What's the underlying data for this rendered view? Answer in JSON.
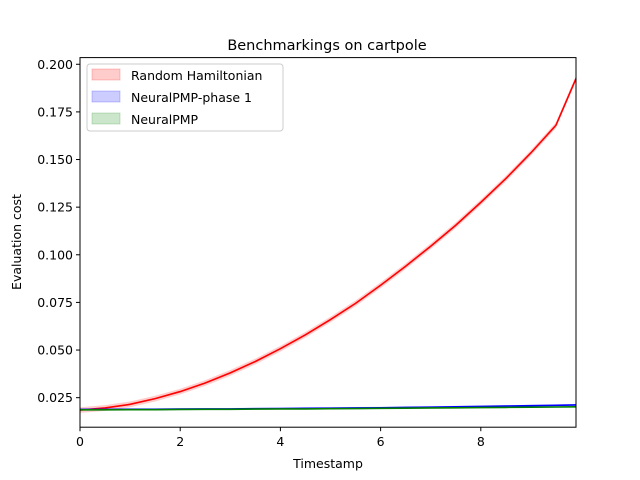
{
  "chart_data": {
    "type": "line",
    "title": "Benchmarkings on cartpole",
    "xlabel": "Timestamp",
    "ylabel": "Evaluation cost",
    "xlim": [
      0,
      9.9
    ],
    "ylim": [
      0.0095,
      0.2035
    ],
    "xticks": [
      0,
      2,
      4,
      6,
      8
    ],
    "xtick_labels": [
      "0",
      "2",
      "4",
      "6",
      "8"
    ],
    "yticks": [
      0.025,
      0.05,
      0.075,
      0.1,
      0.125,
      0.15,
      0.175,
      0.2
    ],
    "ytick_labels": [
      "0.025",
      "0.050",
      "0.075",
      "0.100",
      "0.125",
      "0.150",
      "0.175",
      "0.200"
    ],
    "grid": false,
    "legend_position": "top-left",
    "x": [
      0,
      0.5,
      1,
      1.5,
      2,
      2.5,
      3,
      3.5,
      4,
      4.5,
      5,
      5.5,
      6,
      6.5,
      7,
      7.5,
      8,
      8.5,
      9,
      9.5,
      9.9
    ],
    "series": [
      {
        "name": "Random Hamiltonian",
        "line_color": "#ff0000",
        "fill_color": "#ff0000",
        "values": [
          0.0185,
          0.0196,
          0.0215,
          0.0245,
          0.0282,
          0.0327,
          0.038,
          0.044,
          0.0507,
          0.058,
          0.066,
          0.0745,
          0.084,
          0.094,
          0.1045,
          0.1155,
          0.1275,
          0.14,
          0.1535,
          0.168,
          0.1925
        ],
        "band": 0.0015
      },
      {
        "name": "NeuralPMP-phase 1",
        "line_color": "#0000ff",
        "fill_color": "#0000ff",
        "values": [
          0.0188,
          0.0188,
          0.0189,
          0.0189,
          0.019,
          0.0191,
          0.0191,
          0.0192,
          0.0193,
          0.0194,
          0.0195,
          0.0196,
          0.0197,
          0.0199,
          0.02,
          0.0202,
          0.0204,
          0.0206,
          0.0208,
          0.021,
          0.0212
        ],
        "band": 0.0005
      },
      {
        "name": "NeuralPMP",
        "line_color": "#008000",
        "fill_color": "#008000",
        "values": [
          0.0186,
          0.0186,
          0.0187,
          0.0187,
          0.0188,
          0.0189,
          0.0189,
          0.019,
          0.0191,
          0.0191,
          0.0192,
          0.0193,
          0.0194,
          0.0195,
          0.0196,
          0.0197,
          0.0198,
          0.0199,
          0.02,
          0.0201,
          0.0202
        ],
        "band": 0.0004
      }
    ]
  }
}
